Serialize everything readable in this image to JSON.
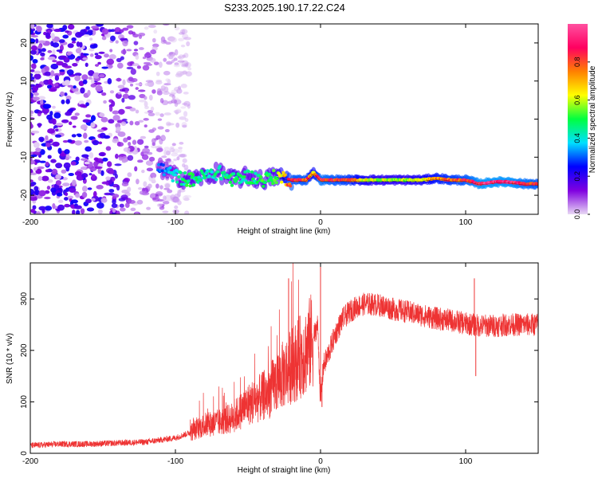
{
  "title": "S233.2025.190.17.22.C24",
  "chart_data": [
    {
      "type": "heatmap",
      "xlabel": "Height of straight line (km)",
      "ylabel": "Frequency (Hz)",
      "xlim": [
        -200,
        150
      ],
      "ylim": [
        -25,
        25
      ],
      "xticks": [
        -200,
        -100,
        0,
        100
      ],
      "yticks": [
        20,
        10,
        0,
        -10,
        -20
      ],
      "grid": false,
      "colorbar": {
        "label": "Normalized spectral amplitude",
        "range": [
          0,
          1
        ],
        "ticks": [
          "0.0",
          "0.2",
          "0.4",
          "0.6",
          "0.8"
        ],
        "colormap": [
          "#e8d8f4",
          "#8000e0",
          "#0000ff",
          "#00e0ff",
          "#00ff40",
          "#ffff00",
          "#ff8000",
          "#ff0060",
          "#ff50a0"
        ]
      },
      "noise_region": {
        "x": [
          -200,
          -105
        ],
        "y": [
          -25,
          25
        ],
        "amplitude": 0.25
      },
      "ridge": {
        "x": [
          -110,
          -100,
          -90,
          -80,
          -70,
          -60,
          -50,
          -40,
          -30,
          -20,
          -10,
          -5,
          0,
          10,
          20,
          30,
          40,
          50,
          60,
          70,
          80,
          90,
          100,
          110,
          120,
          130,
          140,
          150
        ],
        "frequency": [
          -13,
          -15,
          -16,
          -15,
          -14,
          -16,
          -15,
          -16,
          -15,
          -16,
          -16,
          -14,
          -16,
          -16,
          -16,
          -16,
          -16,
          -16,
          -16,
          -16,
          -15.5,
          -16,
          -16,
          -17,
          -16.5,
          -16.5,
          -17,
          -17
        ],
        "amplitude": [
          0.3,
          0.4,
          0.5,
          0.45,
          0.45,
          0.5,
          0.45,
          0.5,
          0.55,
          0.85,
          0.85,
          0.7,
          0.9,
          0.85,
          0.8,
          0.65,
          0.6,
          0.6,
          0.6,
          0.65,
          0.75,
          0.8,
          0.85,
          0.95,
          0.95,
          0.95,
          0.9,
          0.85
        ]
      }
    },
    {
      "type": "line",
      "xlabel": "Height of straight line (km)",
      "ylabel": "SNR (10 * v/v)",
      "xlim": [
        -200,
        150
      ],
      "ylim": [
        0,
        370
      ],
      "xticks": [
        -200,
        -100,
        0,
        100
      ],
      "yticks": [
        0,
        100,
        200,
        300
      ],
      "grid": false,
      "color": "#ee3333",
      "series": [
        {
          "x": [
            -200,
            -180,
            -160,
            -140,
            -120,
            -100,
            -90,
            -80,
            -70,
            -60,
            -50,
            -40,
            -35,
            -30,
            -25,
            -20,
            -15,
            -10,
            -5,
            -2,
            0,
            2,
            5,
            10,
            15,
            20,
            25,
            30,
            35,
            40,
            45,
            50,
            60,
            70,
            80,
            90,
            100,
            110,
            120,
            130,
            140,
            150
          ],
          "values": [
            15,
            18,
            18,
            20,
            22,
            30,
            40,
            55,
            60,
            70,
            95,
            110,
            120,
            140,
            155,
            170,
            185,
            200,
            225,
            250,
            100,
            170,
            190,
            230,
            260,
            275,
            285,
            290,
            290,
            288,
            285,
            280,
            275,
            268,
            262,
            258,
            252,
            248,
            248,
            250,
            250,
            250
          ],
          "spikes": [
            {
              "x": -22,
              "value": 340
            },
            {
              "x": 0,
              "value": 370
            },
            {
              "x": 1,
              "value": 90
            },
            {
              "x": 107,
              "value": 150
            },
            {
              "x": 106,
              "value": 340
            }
          ]
        }
      ]
    }
  ]
}
